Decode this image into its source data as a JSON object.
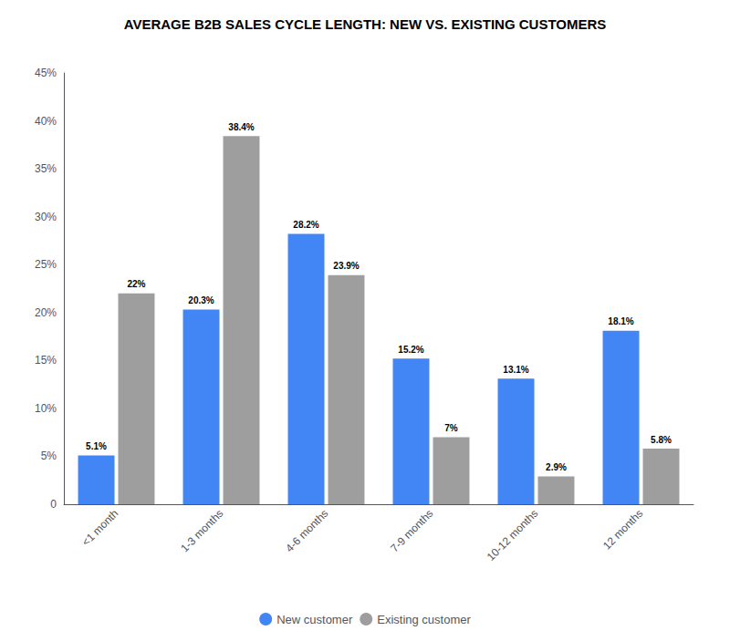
{
  "chart_data": {
    "type": "bar",
    "title": "AVERAGE B2B SALES CYCLE LENGTH: NEW VS. EXISTING CUSTOMERS",
    "categories": [
      "<1 month",
      "1-3 months",
      "4-6 months",
      "7-9 months",
      "10-12 months",
      "12 months"
    ],
    "series": [
      {
        "name": "New customer",
        "color": "#4285F4",
        "values": [
          5.1,
          20.3,
          28.2,
          15.2,
          13.1,
          18.1
        ],
        "value_labels": [
          "5.1%",
          "20.3%",
          "28.2%",
          "15.2%",
          "13.1%",
          "18.1%"
        ]
      },
      {
        "name": "Existing customer",
        "color": "#9E9E9E",
        "values": [
          22.0,
          38.4,
          23.9,
          7.0,
          2.9,
          5.8
        ],
        "value_labels": [
          "22%",
          "38.4%",
          "23.9%",
          "7%",
          "2.9%",
          "5.8%"
        ]
      }
    ],
    "ylim": [
      0,
      45
    ],
    "yticks": [
      0,
      {
        "value": 5,
        "label": "5%"
      },
      {
        "value": 10,
        "label": "10%"
      },
      {
        "value": 15,
        "label": "15%"
      },
      {
        "value": 20,
        "label": "20%"
      },
      {
        "value": 25,
        "label": "25%"
      },
      {
        "value": 30,
        "label": "30%"
      },
      {
        "value": 35,
        "label": "35%"
      },
      {
        "value": 40,
        "label": "40%"
      },
      {
        "value": 45,
        "label": "45%"
      }
    ],
    "grid": false,
    "legend": "bottom",
    "data_labels": true
  }
}
